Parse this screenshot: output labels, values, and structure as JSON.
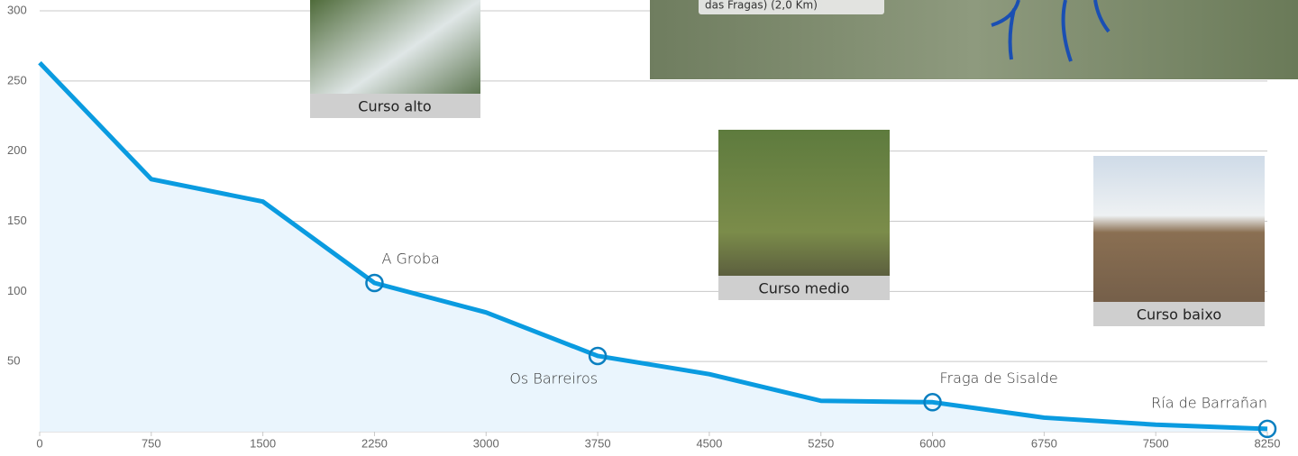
{
  "chart_data": {
    "type": "line",
    "x": [
      0,
      750,
      1500,
      2250,
      3000,
      3750,
      4500,
      5250,
      6000,
      6750,
      7500,
      8250
    ],
    "values": [
      263,
      180,
      164,
      106,
      85,
      54,
      41,
      22,
      21,
      10,
      5,
      2
    ],
    "point_labels": [
      null,
      null,
      null,
      "A Groba",
      null,
      "Os Barreiros",
      null,
      null,
      "Fraga de Sisalde",
      null,
      null,
      "Ría de Barrañan"
    ],
    "color": "#0a9be0",
    "xlim": [
      0,
      8250
    ],
    "xticks": [
      0,
      750,
      1500,
      2250,
      3000,
      3750,
      4500,
      5250,
      6000,
      6750,
      7500,
      8250
    ],
    "ylim": [
      0,
      300
    ],
    "yticks": [
      50,
      100,
      150,
      200,
      250,
      300
    ],
    "grid": true
  },
  "photos": [
    "Curso alto",
    "Curso medio",
    "Curso baixo"
  ],
  "map_caption": "das Fragas) (2,0 Km)"
}
